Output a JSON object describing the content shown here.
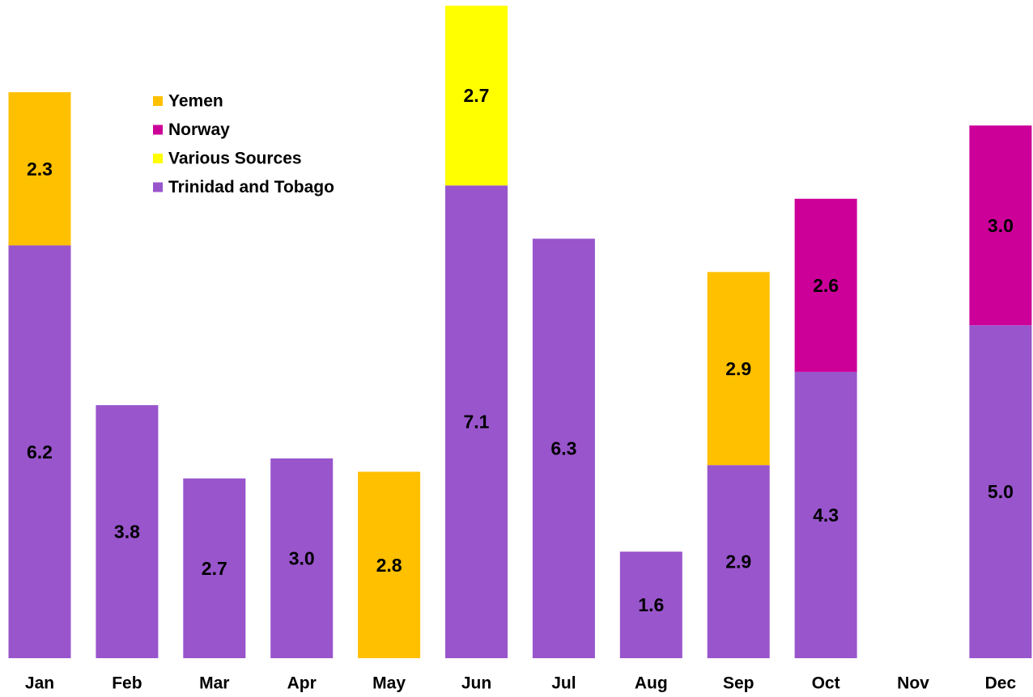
{
  "chart_data": {
    "type": "stacked_bar",
    "categories": [
      "Jan",
      "Feb",
      "Mar",
      "Apr",
      "May",
      "Jun",
      "Jul",
      "Aug",
      "Sep",
      "Oct",
      "Nov",
      "Dec"
    ],
    "series": [
      {
        "name": "Yemen",
        "color": "#FFC000",
        "values": [
          2.3,
          null,
          null,
          null,
          2.8,
          null,
          null,
          null,
          2.9,
          null,
          null,
          null
        ],
        "value_labels": [
          "2.3",
          null,
          null,
          null,
          "2.8",
          null,
          null,
          null,
          "2.9",
          null,
          null,
          null
        ]
      },
      {
        "name": "Norway",
        "color": "#CC0099",
        "values": [
          null,
          null,
          null,
          null,
          null,
          null,
          null,
          null,
          null,
          2.6,
          null,
          3.0
        ],
        "value_labels": [
          null,
          null,
          null,
          null,
          null,
          null,
          null,
          null,
          null,
          "2.6",
          null,
          "3.0"
        ]
      },
      {
        "name": "Various Sources",
        "color": "#FFFF00",
        "values": [
          null,
          null,
          null,
          null,
          null,
          2.7,
          null,
          null,
          null,
          null,
          null,
          null
        ],
        "value_labels": [
          null,
          null,
          null,
          null,
          null,
          "2.7",
          null,
          null,
          null,
          null,
          null,
          null
        ]
      },
      {
        "name": "Trinidad and Tobago",
        "color": "#9955CC",
        "values": [
          6.2,
          3.8,
          2.7,
          3.0,
          null,
          7.1,
          6.3,
          1.6,
          2.9,
          4.3,
          null,
          5.0
        ],
        "value_labels": [
          "6.2",
          "3.8",
          "2.7",
          "3.0",
          null,
          "7.1",
          "6.3",
          "1.6",
          "2.9",
          "4.3",
          null,
          "5.0"
        ]
      }
    ],
    "legend": "upper left"
  }
}
